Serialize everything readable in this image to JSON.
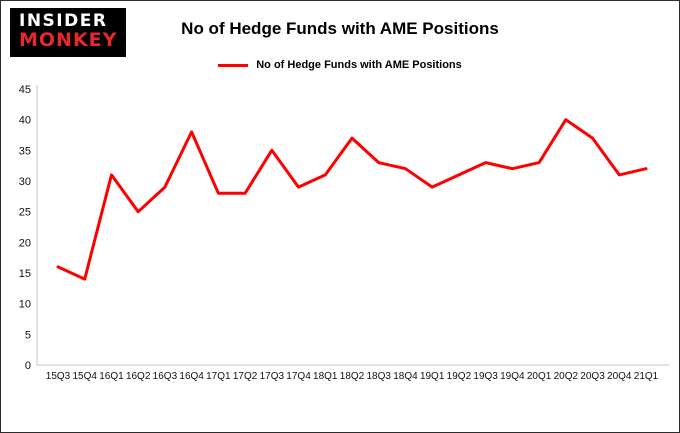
{
  "logo": {
    "line1": "INSIDER",
    "line2": "MONKEY"
  },
  "title": "No of Hedge Funds with AME Positions",
  "legend": {
    "label": "No of Hedge Funds with AME Positions",
    "color": "#ff0000"
  },
  "chart_data": {
    "type": "line",
    "title": "No of Hedge Funds with AME Positions",
    "xlabel": "",
    "ylabel": "",
    "categories": [
      "15Q3",
      "15Q4",
      "16Q1",
      "16Q2",
      "16Q3",
      "16Q4",
      "17Q1",
      "17Q2",
      "17Q3",
      "17Q4",
      "18Q1",
      "18Q2",
      "18Q3",
      "18Q4",
      "19Q1",
      "19Q2",
      "19Q3",
      "19Q4",
      "20Q1",
      "20Q2",
      "20Q3",
      "20Q4",
      "21Q1"
    ],
    "series": [
      {
        "name": "No of Hedge Funds with AME Positions",
        "color": "#ff0000",
        "values": [
          16,
          14,
          31,
          25,
          29,
          38,
          28,
          28,
          35,
          29,
          31,
          37,
          33,
          32,
          29,
          31,
          33,
          32,
          33,
          40,
          37,
          31,
          32
        ]
      }
    ],
    "ylim": [
      0,
      45
    ],
    "ytick_step": 5,
    "grid": false,
    "legend_position": "top",
    "axis_color": "#c6c6c6",
    "line_width": 3
  }
}
